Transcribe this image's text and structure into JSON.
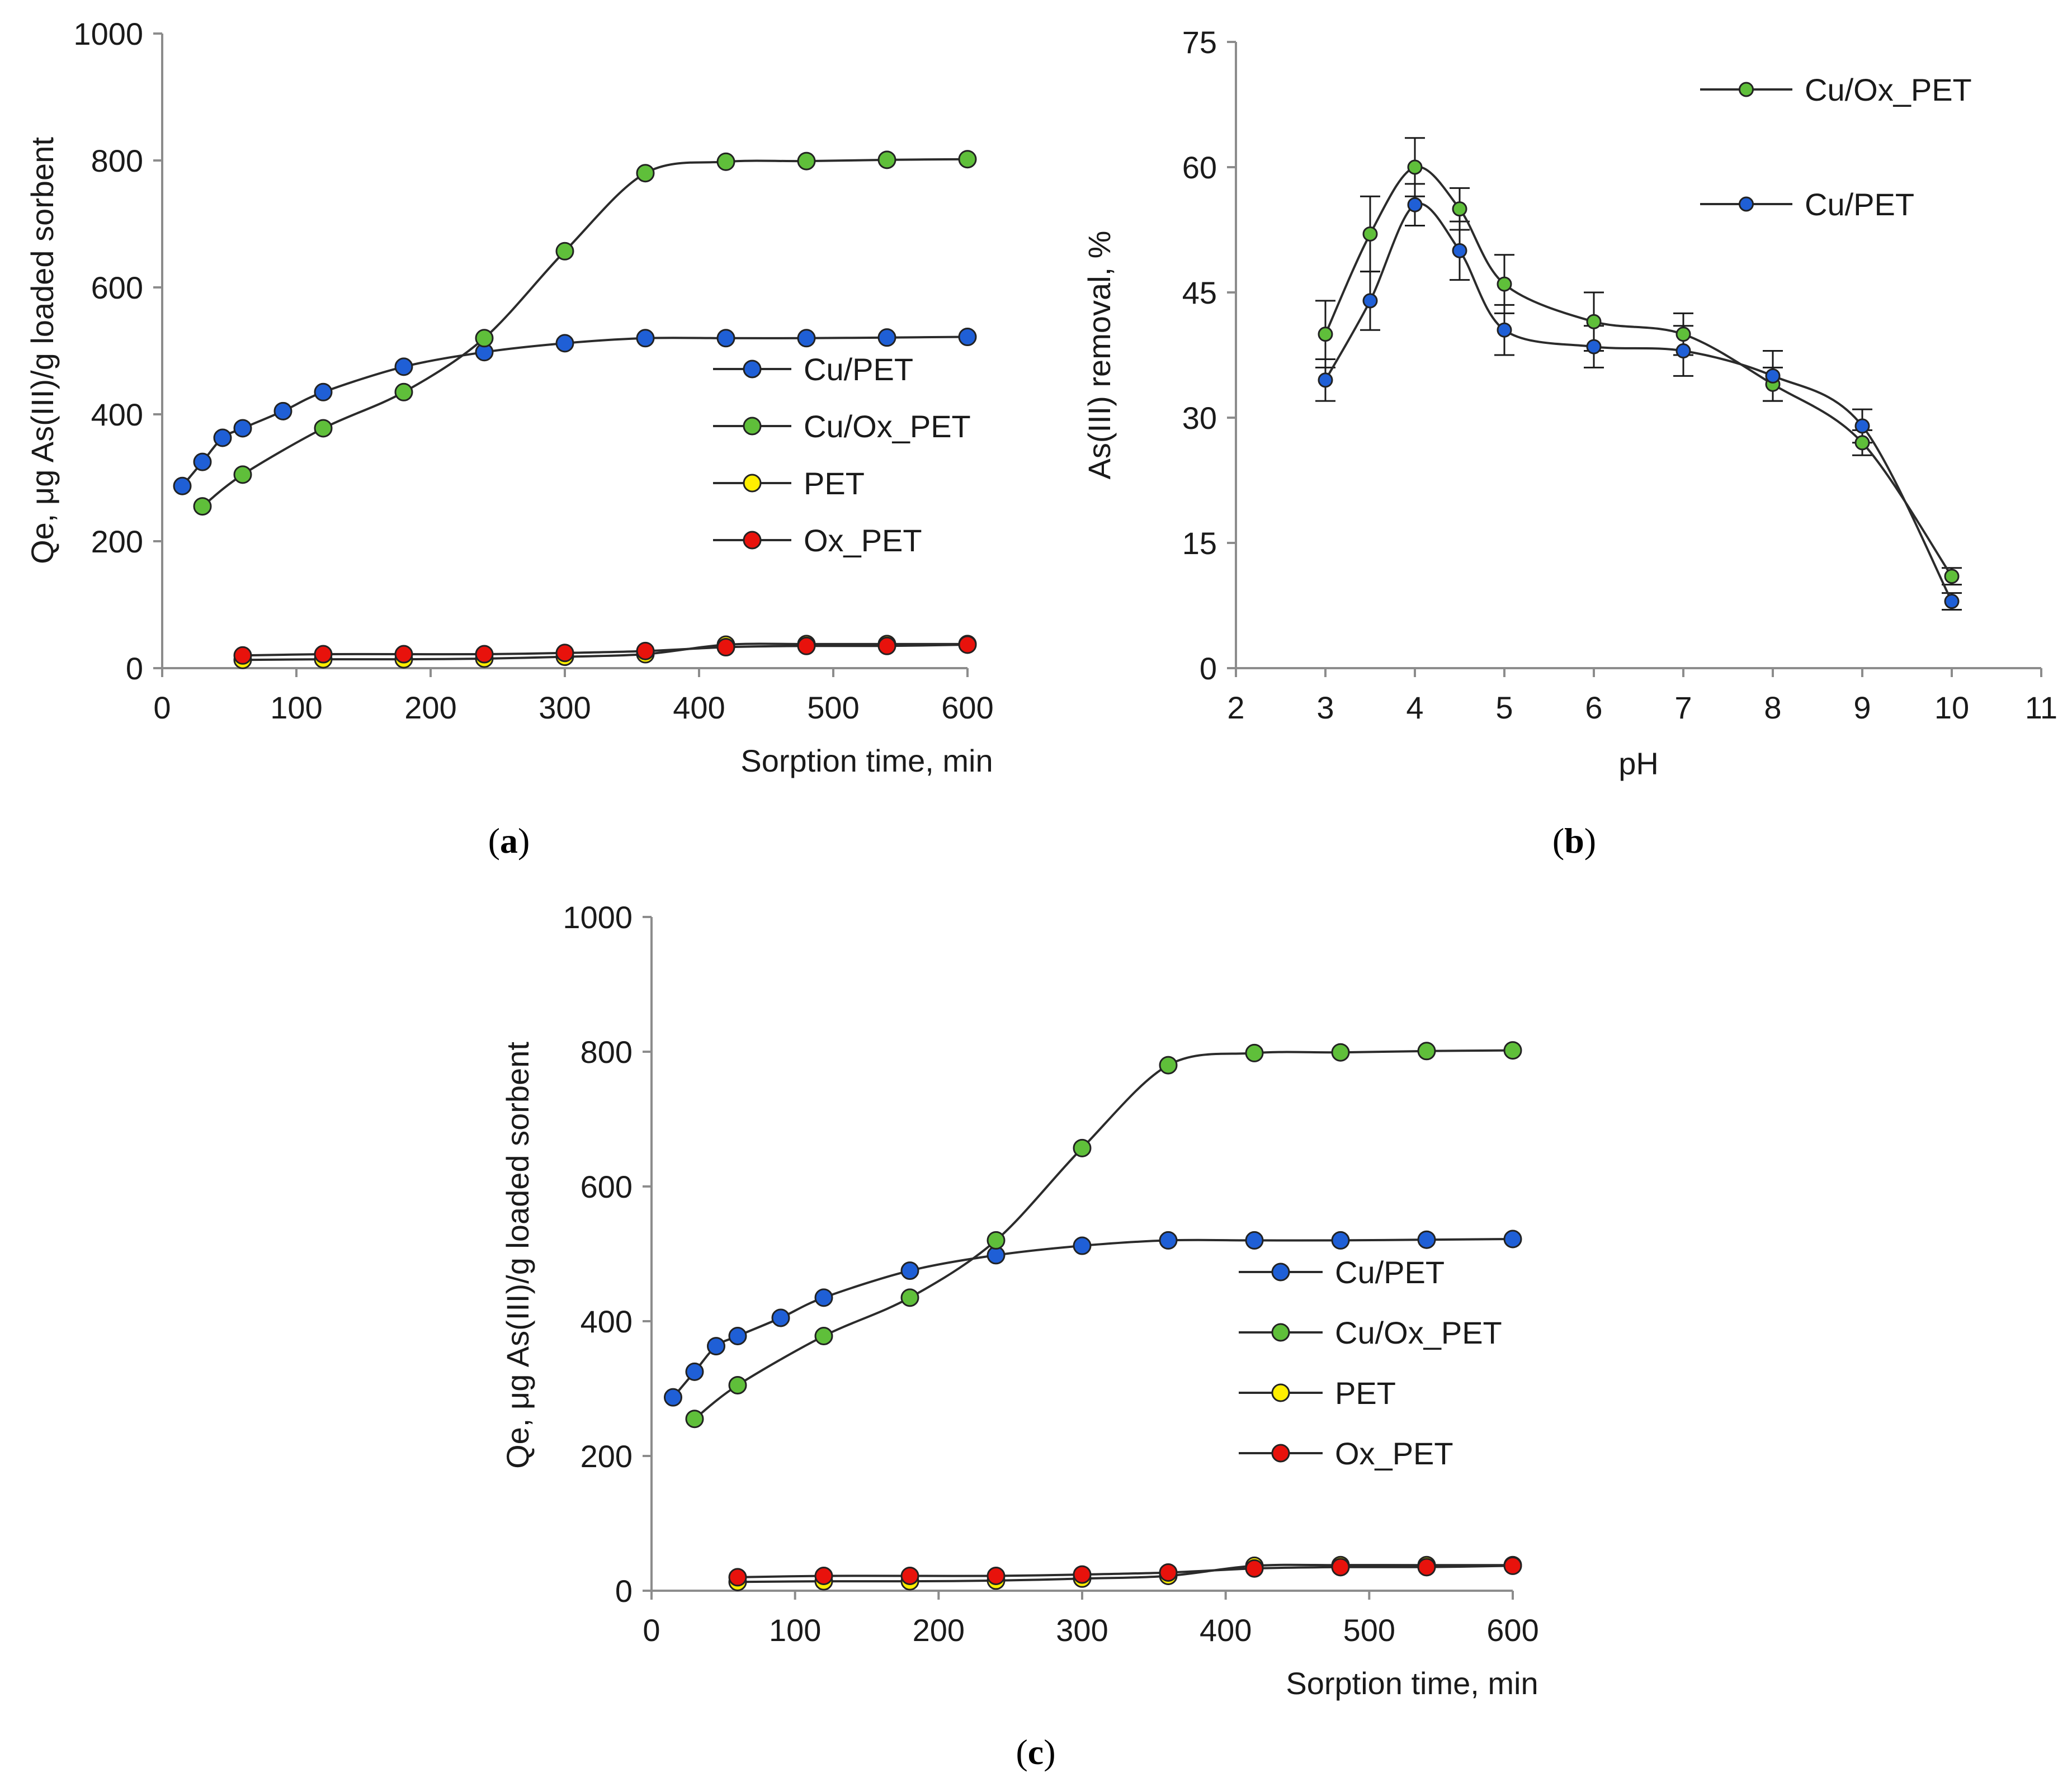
{
  "chart_data": [
    {
      "id": "a",
      "type": "line",
      "caption": "a",
      "xlabel": "Sorption time, min",
      "ylabel": "Qe, μg As(III)/g loaded sorbent",
      "xlim": [
        0,
        600
      ],
      "ylim": [
        0,
        1000
      ],
      "xticks": [
        "0",
        "100",
        "200",
        "300",
        "400",
        "500",
        "600"
      ],
      "yticks": [
        "0",
        "200",
        "400",
        "600",
        "800",
        "1000"
      ],
      "legend_position": "middle-right",
      "series": [
        {
          "name": "Cu/PET",
          "color": "#1f5fd6",
          "x": [
            15,
            30,
            45,
            60,
            90,
            120,
            180,
            240,
            300,
            360,
            420,
            480,
            540,
            600
          ],
          "y": [
            287,
            325,
            363,
            378,
            405,
            435,
            475,
            498,
            512,
            520,
            520,
            520,
            521,
            522
          ]
        },
        {
          "name": "Cu/Ox_PET",
          "color": "#5fbf3a",
          "x": [
            30,
            60,
            120,
            180,
            240,
            300,
            360,
            420,
            480,
            540,
            600
          ],
          "y": [
            255,
            305,
            378,
            435,
            520,
            657,
            780,
            798,
            799,
            801,
            802
          ]
        },
        {
          "name": "PET",
          "color": "#ffef00",
          "x": [
            60,
            120,
            180,
            240,
            300,
            360,
            420,
            480,
            540,
            600
          ],
          "y": [
            13,
            14,
            14,
            15,
            18,
            22,
            37,
            38,
            38,
            38
          ]
        },
        {
          "name": "Ox_PET",
          "color": "#e8120c",
          "x": [
            60,
            120,
            180,
            240,
            300,
            360,
            420,
            480,
            540,
            600
          ],
          "y": [
            20,
            22,
            22,
            22,
            24,
            27,
            33,
            35,
            35,
            37
          ]
        }
      ]
    },
    {
      "id": "b",
      "type": "line",
      "caption": "b",
      "xlabel": "pH",
      "ylabel": "As(III) removal, %",
      "xlim": [
        2,
        11
      ],
      "ylim": [
        0,
        75
      ],
      "xticks": [
        "2",
        "3",
        "4",
        "5",
        "6",
        "7",
        "8",
        "9",
        "10",
        "11"
      ],
      "yticks": [
        "0",
        "15",
        "30",
        "45",
        "60",
        "75"
      ],
      "legend_position": "top-right",
      "series": [
        {
          "name": "Cu/Ox_PET",
          "color": "#5fbf3a",
          "x": [
            3,
            3.5,
            4,
            4.5,
            5,
            6,
            7,
            8,
            9,
            10
          ],
          "y": [
            40,
            52,
            60,
            55,
            46,
            41.5,
            40,
            34,
            27,
            11
          ],
          "err": [
            4,
            4.5,
            3.5,
            2.5,
            3.5,
            3.5,
            2.5,
            2,
            1.5,
            1
          ]
        },
        {
          "name": "Cu/PET",
          "color": "#1f5fd6",
          "x": [
            3,
            3.5,
            4,
            4.5,
            5,
            6,
            7,
            8,
            9,
            10
          ],
          "y": [
            34.5,
            44,
            55.5,
            50,
            40.5,
            38.5,
            38,
            35,
            29,
            8
          ],
          "err": [
            2.5,
            3.5,
            2.5,
            3.5,
            3,
            2.5,
            3,
            3,
            2,
            1
          ]
        }
      ]
    },
    {
      "id": "c",
      "type": "line",
      "caption": "c",
      "xlabel": "Sorption time, min",
      "ylabel": "Qe, μg As(III)/g loaded sorbent",
      "xlim": [
        0,
        600
      ],
      "ylim": [
        0,
        1000
      ],
      "xticks": [
        "0",
        "100",
        "200",
        "300",
        "400",
        "500",
        "600"
      ],
      "yticks": [
        "0",
        "200",
        "400",
        "600",
        "800",
        "1000"
      ],
      "legend_position": "middle-right",
      "series": [
        {
          "name": "Cu/PET",
          "color": "#1f5fd6",
          "x": [
            15,
            30,
            45,
            60,
            90,
            120,
            180,
            240,
            300,
            360,
            420,
            480,
            540,
            600
          ],
          "y": [
            287,
            325,
            363,
            378,
            405,
            435,
            475,
            498,
            512,
            520,
            520,
            520,
            521,
            522
          ]
        },
        {
          "name": "Cu/Ox_PET",
          "color": "#5fbf3a",
          "x": [
            30,
            60,
            120,
            180,
            240,
            300,
            360,
            420,
            480,
            540,
            600
          ],
          "y": [
            255,
            305,
            378,
            435,
            520,
            657,
            780,
            798,
            799,
            801,
            802
          ]
        },
        {
          "name": "PET",
          "color": "#ffef00",
          "x": [
            60,
            120,
            180,
            240,
            300,
            360,
            420,
            480,
            540,
            600
          ],
          "y": [
            13,
            14,
            14,
            15,
            18,
            22,
            37,
            38,
            38,
            38
          ]
        },
        {
          "name": "Ox_PET",
          "color": "#e8120c",
          "x": [
            60,
            120,
            180,
            240,
            300,
            360,
            420,
            480,
            540,
            600
          ],
          "y": [
            20,
            22,
            22,
            22,
            24,
            27,
            33,
            35,
            35,
            37
          ]
        }
      ]
    }
  ]
}
